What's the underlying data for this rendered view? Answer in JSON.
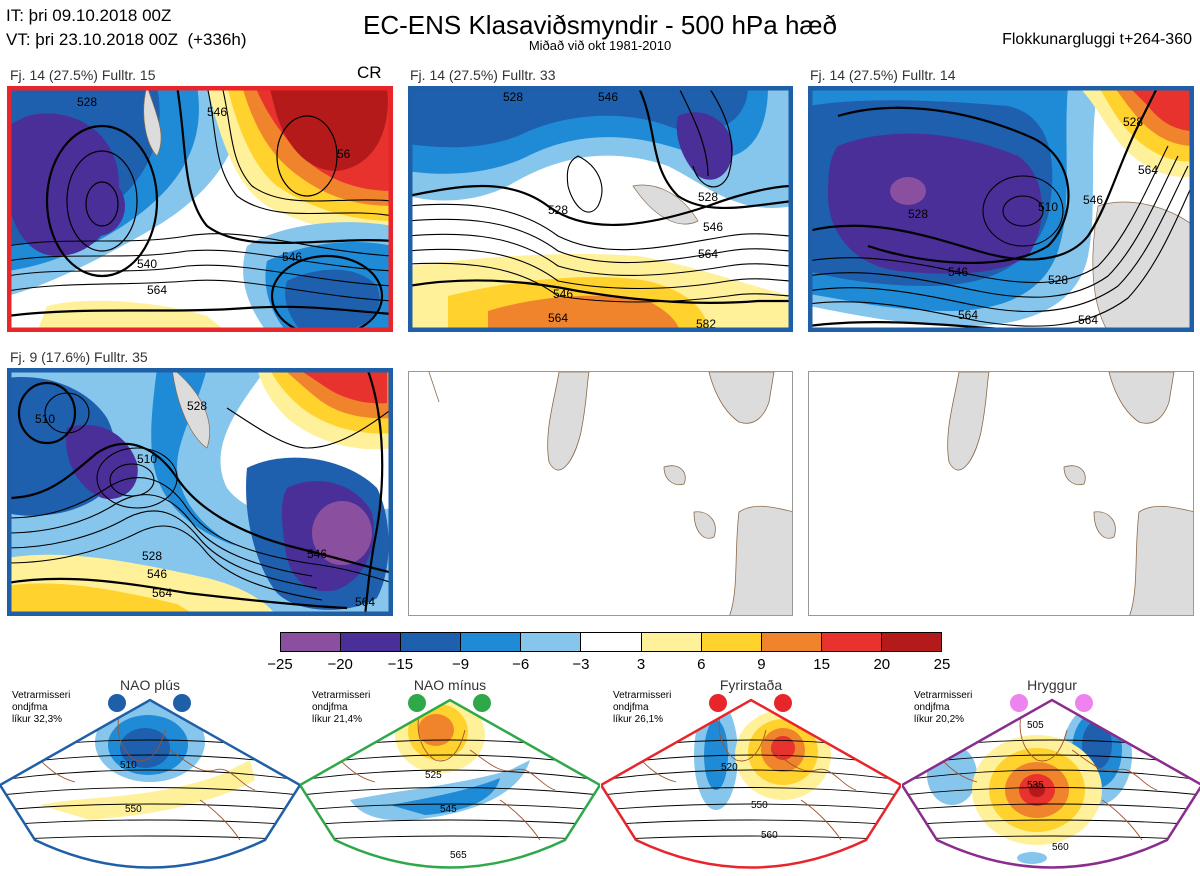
{
  "header": {
    "it_label": "IT: þri 09.10.2018 00Z",
    "vt_label": "VT: þri 23.10.2018 00Z  (+336h)",
    "title": "EC-ENS Klasaviðsmyndir - 500 hPa hæð",
    "subtitle": "Miðað við okt 1981-2010",
    "window": "Flokkunargluggi t+264-360"
  },
  "panels": [
    {
      "label": "Fj. 14 (27.5%)   Fulltr. 15",
      "tag": "CR",
      "frame_color": "#e8252a",
      "contours": [
        "528",
        "546",
        "56",
        "546",
        "540",
        "564"
      ]
    },
    {
      "label": "Fj. 14 (27.5%)   Fulltr. 33",
      "tag": "",
      "frame_color": "#1f5fa8",
      "contours": [
        "528",
        "546",
        "528",
        "528",
        "546",
        "564",
        "546",
        "564",
        "582"
      ]
    },
    {
      "label": "Fj. 14 (27.5%)   Fulltr. 14",
      "tag": "",
      "frame_color": "#1f5fa8",
      "contours": [
        "528",
        "510",
        "528",
        "546",
        "528",
        "546",
        "564",
        "564",
        "564"
      ]
    },
    {
      "label": "Fj. 9 (17.6%)   Fulltr. 35",
      "tag": "",
      "frame_color": "#1f5fa8",
      "contours": [
        "510",
        "510",
        "528",
        "528",
        "546",
        "564",
        "546",
        "564"
      ]
    }
  ],
  "colorbar": {
    "colors": [
      "#8b4fa0",
      "#4a2f98",
      "#1e5fae",
      "#1f8bd6",
      "#86c6ec",
      "#ffffff",
      "#fff09a",
      "#ffd22e",
      "#f0842c",
      "#e8322e",
      "#b51a1a"
    ],
    "ticks": [
      "−25",
      "−20",
      "−15",
      "−9",
      "−6",
      "−3",
      "3",
      "6",
      "9",
      "15",
      "20",
      "25"
    ]
  },
  "regimes": [
    {
      "name": "NAO plús",
      "season": "Vetrarmisseri",
      "measure": "ondjfma",
      "prob": "líkur 32,3%",
      "color": "#1f5fa8",
      "dot_color": "#1f5fa8",
      "contours": [
        "510",
        "550"
      ]
    },
    {
      "name": "NAO mínus",
      "season": "Vetrarmisseri",
      "measure": "ondjfma",
      "prob": "líkur 21,4%",
      "color": "#2fa84a",
      "dot_color": "#2fa84a",
      "contours": [
        "525",
        "545",
        "565"
      ]
    },
    {
      "name": "Fyrirstaða",
      "season": "Vetrarmisseri",
      "measure": "ondjfma",
      "prob": "líkur 26,1%",
      "color": "#e8252a",
      "dot_color": "#e8252a",
      "contours": [
        "520",
        "550",
        "560"
      ]
    },
    {
      "name": "Hryggur",
      "season": "Vetrarmisseri",
      "measure": "ondjfma",
      "prob": "líkur 20,2%",
      "color": "#8a2b8e",
      "dot_color": "#ee82ee",
      "contours": [
        "505",
        "535",
        "560"
      ]
    }
  ]
}
